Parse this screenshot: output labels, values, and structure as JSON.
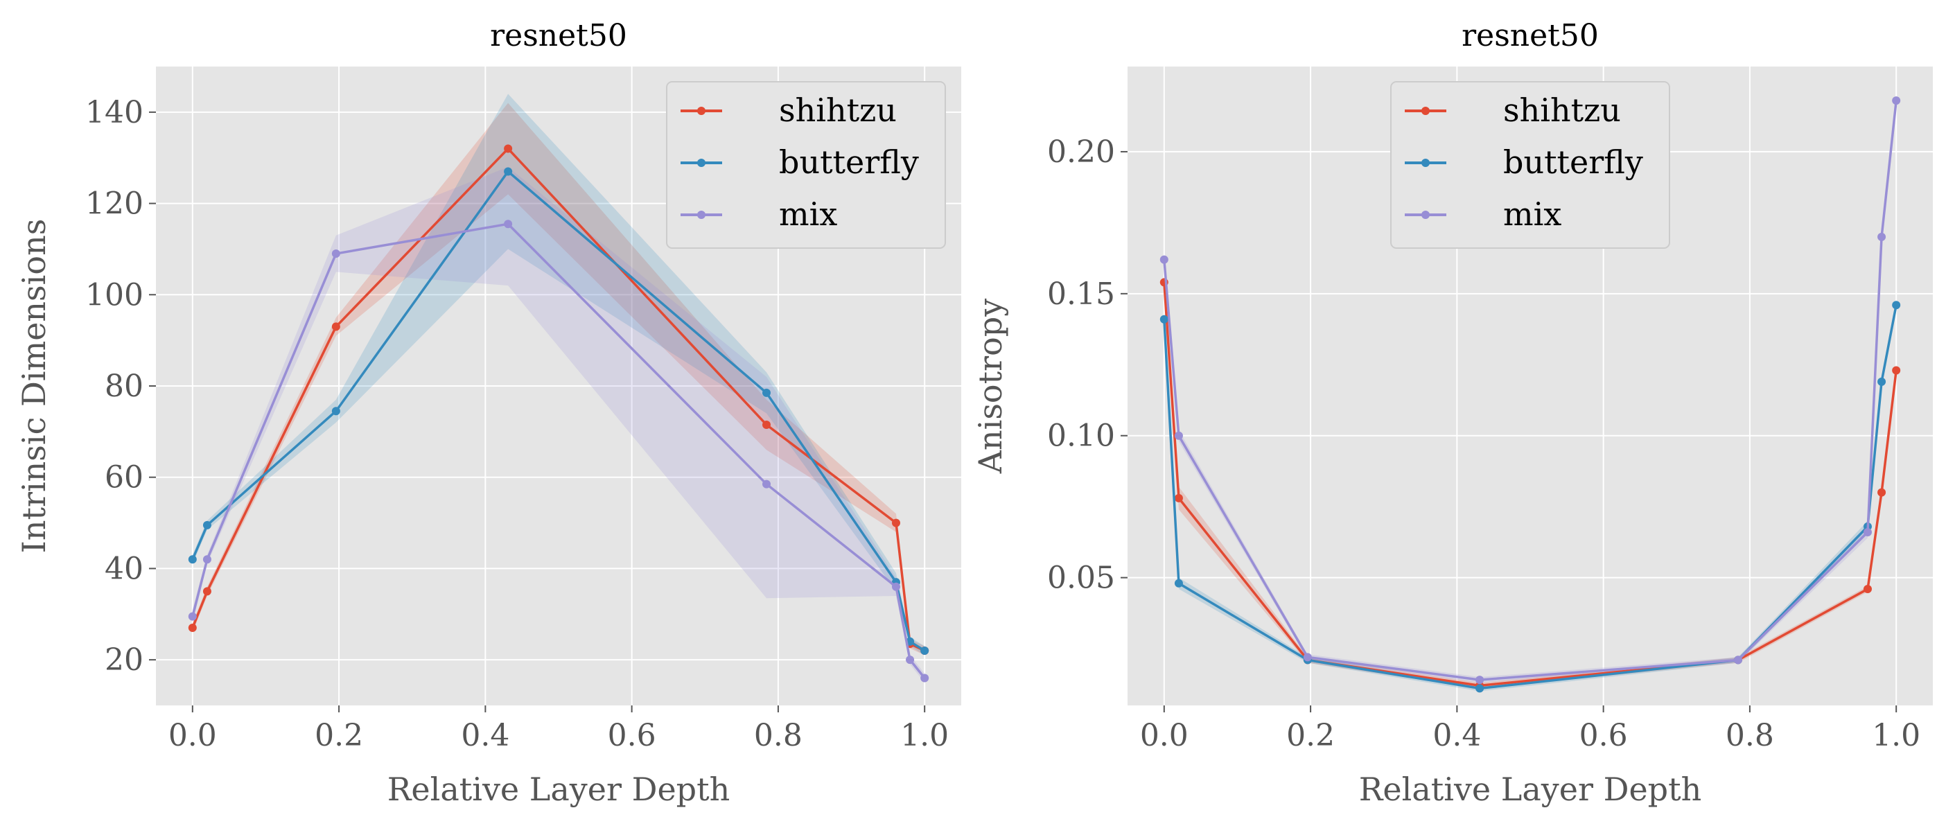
{
  "colors": {
    "shihtzu": "#E24A33",
    "butterfly": "#348ABD",
    "mix": "#988ED5",
    "panel_bg": "#E5E5E5",
    "grid": "#FFFFFF"
  },
  "chart_data": [
    {
      "type": "line",
      "title": "resnet50",
      "xlabel": "Relative Layer Depth",
      "ylabel": "Intrinsic Dimensions",
      "xlim": [
        -0.05,
        1.05
      ],
      "ylim": [
        10,
        150
      ],
      "xticks": [
        "0.0",
        "0.2",
        "0.4",
        "0.6",
        "0.8",
        "1.0"
      ],
      "xtick_values": [
        0.0,
        0.2,
        0.4,
        0.6,
        0.8,
        1.0
      ],
      "yticks": [
        "20",
        "40",
        "60",
        "80",
        "100",
        "120",
        "140"
      ],
      "ytick_values": [
        20,
        40,
        60,
        80,
        100,
        120,
        140
      ],
      "grid": true,
      "legend_position": "top-right",
      "x": [
        0.0,
        0.02,
        0.196,
        0.431,
        0.784,
        0.961,
        0.98,
        1.0
      ],
      "series": [
        {
          "name": "shihtzu",
          "color": "#E24A33",
          "values": [
            27,
            35,
            93,
            132,
            71.5,
            50,
            23.5,
            22
          ],
          "lower": [
            26,
            34,
            91,
            122,
            66,
            48,
            22.5,
            21
          ],
          "upper": [
            28,
            36,
            95,
            142,
            77,
            52,
            24.5,
            23
          ]
        },
        {
          "name": "butterfly",
          "color": "#348ABD",
          "values": [
            42,
            49.5,
            74.5,
            127,
            78.5,
            37,
            24,
            22
          ],
          "lower": [
            41,
            48.5,
            72,
            110,
            74,
            35,
            23,
            21
          ],
          "upper": [
            43,
            50.5,
            77,
            144,
            83,
            39,
            25,
            23
          ]
        },
        {
          "name": "mix",
          "color": "#988ED5",
          "values": [
            29.5,
            42,
            109,
            115.5,
            58.5,
            36,
            20,
            16
          ],
          "lower": [
            28,
            41,
            105,
            102,
            33.5,
            34,
            19,
            15
          ],
          "upper": [
            31,
            43,
            113,
            128,
            82,
            38,
            21,
            17
          ]
        }
      ]
    },
    {
      "type": "line",
      "title": "resnet50",
      "xlabel": "Relative Layer Depth",
      "ylabel": "Anisotropy",
      "xlim": [
        -0.05,
        1.05
      ],
      "ylim": [
        0.005,
        0.23
      ],
      "xticks": [
        "0.0",
        "0.2",
        "0.4",
        "0.6",
        "0.8",
        "1.0"
      ],
      "xtick_values": [
        0.0,
        0.2,
        0.4,
        0.6,
        0.8,
        1.0
      ],
      "yticks": [
        "0.05",
        "0.10",
        "0.15",
        "0.20"
      ],
      "ytick_values": [
        0.05,
        0.1,
        0.15,
        0.2
      ],
      "grid": true,
      "legend_position": "top-center",
      "x": [
        0.0,
        0.02,
        0.196,
        0.431,
        0.784,
        0.961,
        0.98,
        1.0
      ],
      "series": [
        {
          "name": "shihtzu",
          "color": "#E24A33",
          "values": [
            0.154,
            0.078,
            0.021,
            0.012,
            0.021,
            0.046,
            0.08,
            0.123
          ],
          "lower": [
            0.152,
            0.074,
            0.02,
            0.011,
            0.02,
            0.045,
            0.078,
            0.121
          ],
          "upper": [
            0.156,
            0.082,
            0.022,
            0.013,
            0.022,
            0.047,
            0.082,
            0.125
          ]
        },
        {
          "name": "butterfly",
          "color": "#348ABD",
          "values": [
            0.141,
            0.048,
            0.021,
            0.011,
            0.021,
            0.068,
            0.119,
            0.146
          ],
          "lower": [
            0.139,
            0.046,
            0.02,
            0.01,
            0.02,
            0.066,
            0.117,
            0.144
          ],
          "upper": [
            0.143,
            0.05,
            0.022,
            0.012,
            0.022,
            0.07,
            0.121,
            0.148
          ]
        },
        {
          "name": "mix",
          "color": "#988ED5",
          "values": [
            0.162,
            0.1,
            0.022,
            0.014,
            0.021,
            0.066,
            0.17,
            0.218
          ],
          "lower": [
            0.16,
            0.098,
            0.021,
            0.013,
            0.02,
            0.064,
            0.168,
            0.216
          ],
          "upper": [
            0.164,
            0.102,
            0.023,
            0.015,
            0.022,
            0.068,
            0.172,
            0.22
          ]
        }
      ]
    }
  ]
}
